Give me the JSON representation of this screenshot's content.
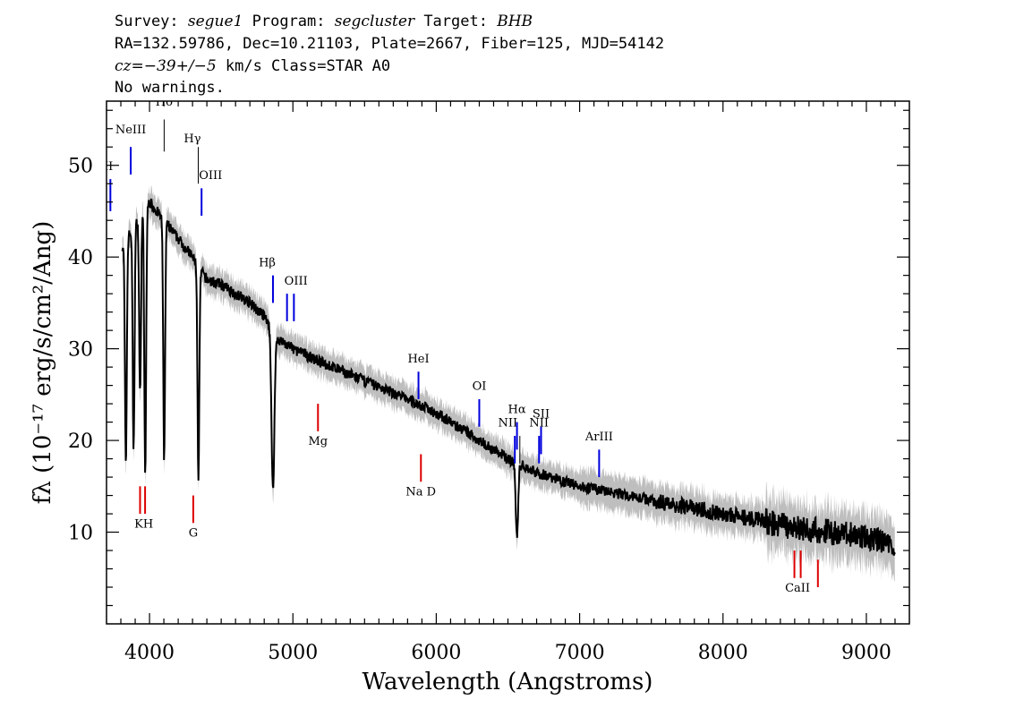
{
  "header": {
    "line1": {
      "survey_label": "Survey: ",
      "survey": "segue1",
      "program_label": " Program: ",
      "program": "segcluster",
      "target_label": " Target: ",
      "target": "BHB"
    },
    "line2": "RA=132.59786, Dec=10.21103, Plate=2667, Fiber=125, MJD=54142",
    "line3": {
      "cz": "cz=−39+/−5",
      "rest": " km/s Class=STAR A0"
    },
    "line4": "No warnings."
  },
  "colors": {
    "spectrum": "#000000",
    "error_band": "#bebebe",
    "emission_line": "#0000dd",
    "absorption_line": "#dd0000",
    "balmer_line": "#000000"
  },
  "chart_data": {
    "type": "line",
    "xlabel": "Wavelength (Angstroms)",
    "ylabel": "fλ (10⁻¹⁷ erg/s/cm²/Ang)",
    "xlim": [
      3700,
      9300
    ],
    "ylim": [
      0,
      57
    ],
    "x_ticks": [
      4000,
      5000,
      6000,
      7000,
      8000,
      9000
    ],
    "y_ticks": [
      10,
      20,
      30,
      40,
      50
    ],
    "continuum_points": [
      [
        3800,
        41
      ],
      [
        3880,
        43
      ],
      [
        3950,
        45
      ],
      [
        4000,
        46
      ],
      [
        4050,
        45
      ],
      [
        4150,
        43
      ],
      [
        4250,
        41
      ],
      [
        4300,
        40
      ],
      [
        4400,
        37.5
      ],
      [
        4500,
        37
      ],
      [
        4600,
        36
      ],
      [
        4700,
        35
      ],
      [
        4800,
        33.5
      ],
      [
        4900,
        31
      ],
      [
        5000,
        30
      ],
      [
        5200,
        28.5
      ],
      [
        5500,
        26.5
      ],
      [
        5800,
        24.5
      ],
      [
        6000,
        23
      ],
      [
        6200,
        21
      ],
      [
        6400,
        19
      ],
      [
        6500,
        18
      ],
      [
        6700,
        16.5
      ],
      [
        7000,
        15
      ],
      [
        7500,
        13.5
      ],
      [
        8000,
        12
      ],
      [
        8500,
        10.5
      ],
      [
        9000,
        9.5
      ],
      [
        9200,
        8.5
      ]
    ],
    "absorption_dips": [
      {
        "wavelength": 3835,
        "min_flux": 17
      },
      {
        "wavelength": 3889,
        "min_flux": 19
      },
      {
        "wavelength": 3934,
        "min_flux": 25
      },
      {
        "wavelength": 3970,
        "min_flux": 16
      },
      {
        "wavelength": 4102,
        "min_flux": 18
      },
      {
        "wavelength": 4341,
        "min_flux": 16
      },
      {
        "wavelength": 4861,
        "min_flux": 14.5
      },
      {
        "wavelength": 6563,
        "min_flux": 9.5
      }
    ],
    "line_markers": [
      {
        "label": "OII",
        "wavelength": 3727,
        "kind": "emission",
        "y_top": 48.5,
        "y_bot": 45,
        "label_y": 49.5,
        "label_side": "left"
      },
      {
        "label": "NeIII",
        "wavelength": 3869,
        "kind": "emission",
        "y_top": 52,
        "y_bot": 49,
        "label_y": 53.5,
        "label_side": "center"
      },
      {
        "label": "Hδ",
        "wavelength": 4102,
        "kind": "balmer",
        "y_top": 55,
        "y_bot": 51.5,
        "label_y": 56.5,
        "label_side": "center"
      },
      {
        "label": "Hγ",
        "wavelength": 4340,
        "kind": "balmer",
        "y_top": 52,
        "y_bot": 48,
        "label_y": 52.5,
        "label_side": "left"
      },
      {
        "label": "OIII",
        "wavelength": 4363,
        "kind": "emission",
        "y_top": 47.5,
        "y_bot": 44.5,
        "label_y": 48.5,
        "label_side": "right"
      },
      {
        "label": "Hβ",
        "wavelength": 4861,
        "kind": "emission",
        "y_top": 38,
        "y_bot": 35,
        "label_y": 39,
        "label_side": "left"
      },
      {
        "label": "OIII",
        "wavelength": 4959,
        "kind": "emission",
        "y_top": 36,
        "y_bot": 33,
        "label_y": 37,
        "label_side": "right"
      },
      {
        "label": "",
        "wavelength": 5007,
        "kind": "emission",
        "y_top": 36,
        "y_bot": 33,
        "label_y": 37,
        "label_side": "none"
      },
      {
        "label": "Mg",
        "wavelength": 5175,
        "kind": "absorption",
        "y_top": 24,
        "y_bot": 21,
        "label_y": 19.5,
        "label_side": "center"
      },
      {
        "label": "HeI",
        "wavelength": 5876,
        "kind": "emission",
        "y_top": 27.5,
        "y_bot": 24.5,
        "label_y": 28.5,
        "label_side": "center"
      },
      {
        "label": "Na D",
        "wavelength": 5893,
        "kind": "absorption",
        "y_top": 18.5,
        "y_bot": 15.5,
        "label_y": 14,
        "label_side": "center"
      },
      {
        "label": "OI",
        "wavelength": 6300,
        "kind": "emission",
        "y_top": 24.5,
        "y_bot": 21.5,
        "label_y": 25.5,
        "label_side": "center"
      },
      {
        "label": "NII",
        "wavelength": 6548,
        "kind": "emission",
        "y_top": 20.5,
        "y_bot": 17.5,
        "label_y": 21.5,
        "label_side": "left"
      },
      {
        "label": "Hα",
        "wavelength": 6563,
        "kind": "emission",
        "y_top": 22,
        "y_bot": 19,
        "label_y": 23,
        "label_side": "center"
      },
      {
        "label": "NII",
        "wavelength": 6583,
        "kind": "balmer",
        "y_top": 20.5,
        "y_bot": 17.5,
        "label_y": 21.5,
        "label_side": "none"
      },
      {
        "label": "NII",
        "wavelength": 6717,
        "kind": "emission",
        "y_top": 20.5,
        "y_bot": 17.5,
        "label_y": 21.5,
        "label_side": "center"
      },
      {
        "label": "SII",
        "wavelength": 6731,
        "kind": "emission",
        "y_top": 21.5,
        "y_bot": 18.5,
        "label_y": 22.5,
        "label_side": "center"
      },
      {
        "label": "ArIII",
        "wavelength": 7136,
        "kind": "emission",
        "y_top": 19,
        "y_bot": 16,
        "label_y": 20,
        "label_side": "center"
      },
      {
        "label": "KH",
        "wavelength": 3950,
        "kind": "absorption_pair",
        "y_top": 15,
        "y_bot": 12,
        "label_y": 10.5,
        "label_side": "center"
      },
      {
        "label": "G",
        "wavelength": 4305,
        "kind": "absorption",
        "y_top": 14,
        "y_bot": 11,
        "label_y": 9.5,
        "label_side": "center"
      },
      {
        "label": "CaII",
        "wavelength": 8520,
        "kind": "absorption_pair",
        "y_top": 8,
        "y_bot": 5,
        "label_y": 3.5,
        "label_side": "center"
      },
      {
        "label": "",
        "wavelength": 8662,
        "kind": "absorption",
        "y_top": 7,
        "y_bot": 4,
        "label_y": 0,
        "label_side": "none"
      }
    ]
  }
}
